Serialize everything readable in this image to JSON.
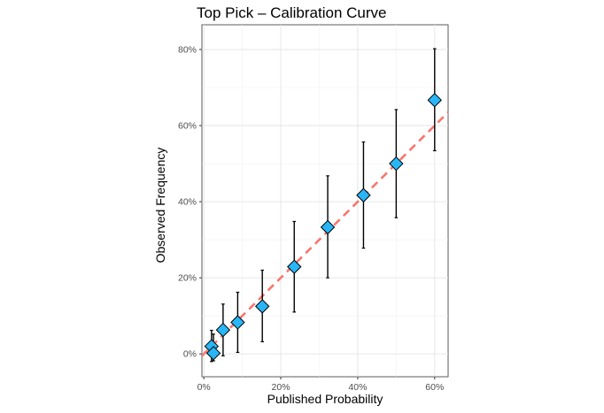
{
  "chart_data": {
    "type": "scatter",
    "title": "Top Pick – Calibration Curve",
    "xlabel": "Published Probability",
    "ylabel": "Observed Frequency",
    "xlim": [
      -0.005,
      0.635
    ],
    "ylim": [
      -0.06,
      0.865
    ],
    "x_ticks": [
      0,
      0.2,
      0.4,
      0.6
    ],
    "x_tick_labels": [
      "0%",
      "20%",
      "40%",
      "60%"
    ],
    "y_ticks": [
      0,
      0.2,
      0.4,
      0.6,
      0.8
    ],
    "y_tick_labels": [
      "0%",
      "20%",
      "40%",
      "60%",
      "80%"
    ],
    "grid": true,
    "reference_line": {
      "style": "dashed",
      "color": "#f8766d",
      "slope": 1,
      "intercept": 0
    },
    "points": [
      {
        "x": 0.02,
        "y": 0.02,
        "lo": -0.02,
        "hi": 0.062
      },
      {
        "x": 0.025,
        "y": 0.002,
        "lo": -0.018,
        "hi": 0.052
      },
      {
        "x": 0.05,
        "y": 0.063,
        "lo": -0.005,
        "hi": 0.131
      },
      {
        "x": 0.088,
        "y": 0.083,
        "lo": 0.004,
        "hi": 0.162
      },
      {
        "x": 0.152,
        "y": 0.125,
        "lo": 0.032,
        "hi": 0.22
      },
      {
        "x": 0.235,
        "y": 0.229,
        "lo": 0.11,
        "hi": 0.348
      },
      {
        "x": 0.322,
        "y": 0.333,
        "lo": 0.2,
        "hi": 0.468
      },
      {
        "x": 0.415,
        "y": 0.417,
        "lo": 0.278,
        "hi": 0.557
      },
      {
        "x": 0.5,
        "y": 0.5,
        "lo": 0.358,
        "hi": 0.642
      },
      {
        "x": 0.6,
        "y": 0.667,
        "lo": 0.534,
        "hi": 0.802
      }
    ],
    "marker_color": "#29b6f6"
  }
}
